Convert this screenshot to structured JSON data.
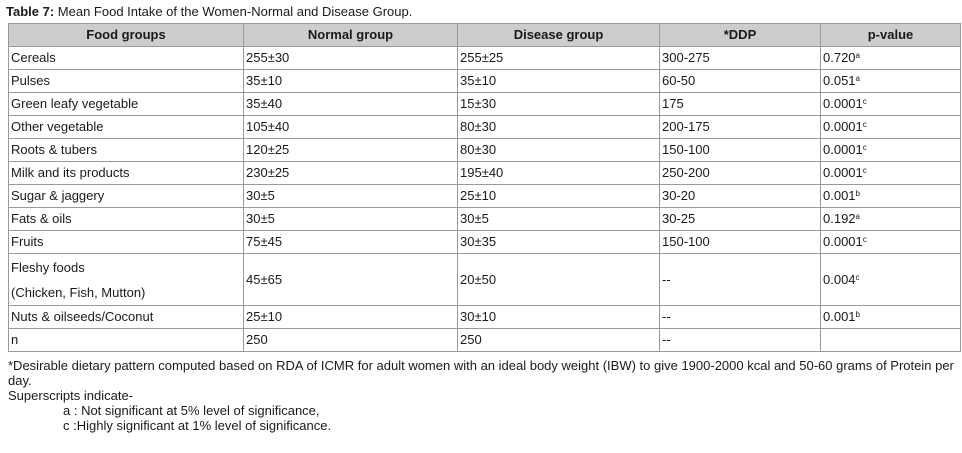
{
  "caption": {
    "label": "Table 7:",
    "text": " Mean Food Intake of the Women-Normal and Disease Group."
  },
  "headers": [
    "Food groups",
    "Normal group",
    "Disease group",
    "*DDP",
    "p-value"
  ],
  "rows": [
    {
      "food": "Cereals",
      "normal": "255±30",
      "disease": "255±25",
      "ddp": "300-275",
      "p": "0.720",
      "sup": "a"
    },
    {
      "food": "Pulses",
      "normal": "35±10",
      "disease": "35±10",
      "ddp": "60-50",
      "p": "0.051",
      "sup": "a"
    },
    {
      "food": "Green leafy vegetable",
      "normal": "35±40",
      "disease": "15±30",
      "ddp": "175",
      "p": "0.0001",
      "sup": "c"
    },
    {
      "food": "Other vegetable",
      "normal": "105±40",
      "disease": "80±30",
      "ddp": "200-175",
      "p": "0.0001",
      "sup": "c"
    },
    {
      "food": "Roots & tubers",
      "normal": "120±25",
      "disease": "80±30",
      "ddp": "150-100",
      "p": "0.0001",
      "sup": "c"
    },
    {
      "food": "Milk and its products",
      "normal": "230±25",
      "disease": "195±40",
      "ddp": "250-200",
      "p": "0.0001",
      "sup": "c"
    },
    {
      "food": "Sugar & jaggery",
      "normal": "30±5",
      "disease": "25±10",
      "ddp": "30-20",
      "p": "0.001",
      "sup": "b"
    },
    {
      "food": "Fats & oils",
      "normal": "30±5",
      "disease": "30±5",
      "ddp": "30-25",
      "p": "0.192",
      "sup": "a"
    },
    {
      "food": "Fruits",
      "normal": "75±45",
      "disease": "30±35",
      "ddp": "150-100",
      "p": "0.0001",
      "sup": "c"
    }
  ],
  "fleshy": {
    "food_line1": "Fleshy foods",
    "food_line2": "(Chicken, Fish, Mutton)",
    "normal": "45±65",
    "disease": "20±50",
    "ddp": "--",
    "p": "0.004",
    "sup": "c"
  },
  "tail_rows": [
    {
      "food": "Nuts & oilseeds/Coconut",
      "normal": "25±10",
      "disease": "30±10",
      "ddp": "--",
      "p": "0.001",
      "sup": "b"
    },
    {
      "food": "n",
      "normal": "250",
      "disease": "250",
      "ddp": "--",
      "p": "",
      "sup": ""
    }
  ],
  "footnote": {
    "ddp_note": "*Desirable dietary pattern computed based on RDA of ICMR for adult women with an ideal body weight (IBW) to give 1900-2000 kcal and 50-60 grams of Protein per day.",
    "superscripts": "Superscripts indicate-",
    "note_a": "a : Not significant at 5% level of significance,",
    "note_c": "c :Highly significant at 1% level of significance."
  }
}
